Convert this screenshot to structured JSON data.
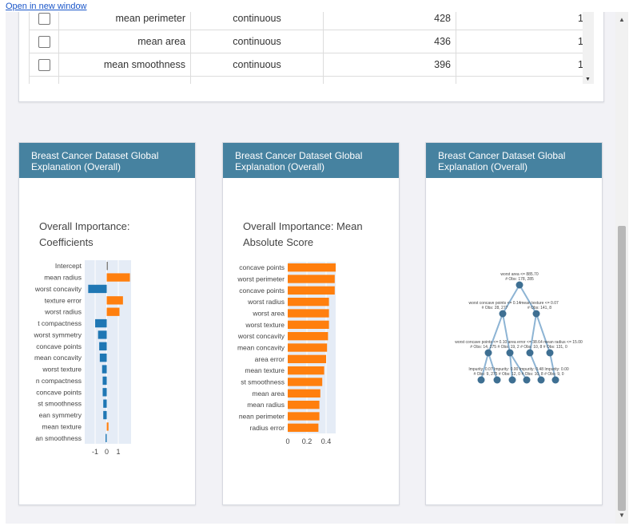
{
  "link": {
    "label": "Open in new window"
  },
  "table": {
    "rows": [
      {
        "feature": "mean perimeter",
        "type": "continuous",
        "count": "428",
        "value": "1"
      },
      {
        "feature": "mean area",
        "type": "continuous",
        "count": "436",
        "value": "1"
      },
      {
        "feature": "mean smoothness",
        "type": "continuous",
        "count": "396",
        "value": "1"
      }
    ]
  },
  "cards": [
    {
      "header": "Breast Cancer Dataset Global Explanation (Overall)",
      "title": "Overall Importance: Coefficients"
    },
    {
      "header": "Breast Cancer Dataset Global Explanation (Overall)",
      "title": "Overall Importance: Mean Absolute Score"
    },
    {
      "header": "Breast Cancer Dataset Global Explanation (Overall)",
      "title": ""
    }
  ],
  "chart_data": [
    {
      "type": "bar",
      "orientation": "horizontal",
      "categories": [
        "Intercept",
        "mean radius",
        "worst concavity",
        "texture error",
        "worst radius",
        "t compactness",
        "worst symmetry",
        "concave points",
        "mean concavity",
        "worst texture",
        "n compactness",
        "concave points",
        "st smoothness",
        "ean symmetry",
        "mean texture",
        "an smoothness"
      ],
      "values": [
        0.1,
        2.0,
        -1.6,
        1.4,
        1.1,
        -1.0,
        -0.75,
        -0.65,
        -0.6,
        -0.4,
        -0.35,
        -0.35,
        -0.3,
        -0.3,
        0.15,
        -0.1
      ],
      "colors": [
        "#7f7f7f",
        "#ff7f0e",
        "#1f77b4",
        "#ff7f0e",
        "#ff7f0e",
        "#1f77b4",
        "#1f77b4",
        "#1f77b4",
        "#1f77b4",
        "#1f77b4",
        "#1f77b4",
        "#1f77b4",
        "#1f77b4",
        "#1f77b4",
        "#ff7f0e",
        "#1f77b4"
      ],
      "xlim": [
        -1.9,
        2.1
      ],
      "xticks": [
        "-1",
        "0",
        "1"
      ],
      "xtick_values": [
        -1,
        0,
        1
      ],
      "grid": true
    },
    {
      "type": "bar",
      "orientation": "horizontal",
      "categories": [
        "concave points",
        "worst perimeter",
        "concave points",
        "worst radius",
        "worst area",
        "worst texture",
        "worst concavity",
        "mean concavity",
        "area error",
        "mean texture",
        "st smoothness",
        "mean area",
        "mean radius",
        "nean perimeter",
        "radius error"
      ],
      "values": [
        0.5,
        0.49,
        0.49,
        0.43,
        0.43,
        0.43,
        0.42,
        0.41,
        0.4,
        0.38,
        0.36,
        0.34,
        0.33,
        0.33,
        0.32
      ],
      "color": "#ff7f0e",
      "xlim": [
        0,
        0.5
      ],
      "xticks": [
        "0",
        "0.2",
        "0.4"
      ],
      "xtick_values": [
        0,
        0.2,
        0.4
      ],
      "grid": true
    }
  ],
  "tree": {
    "root": {
      "label1": "worst area <= 885.70",
      "label2": "# Obs: 178, 285"
    },
    "level1": [
      {
        "label1": "worst concave points <= 0.14",
        "label2": "# Obs: 28, 277"
      },
      {
        "label1": "mean texture <= 0.07",
        "label2": "# Obs: 141, 8"
      }
    ],
    "level2_label1": "worst concave points <= 0.10  area error <= 38.64  mean radius <= 15.00",
    "level2_label2": "# Obs: 14, 275  # Obs: 19, 2  # Obs: 10, 8  # Obs: 131, 0",
    "level3_label1": "Impurity: 0.07  Impurity: 0.00  Impurity: 0.48  Impurity: 0.00",
    "level3_label2": "# Obs: 9, 275  # Obs: 12, 0  # Obs: 10, 8  # Obs: 9, 0",
    "edge_color": "#8db4d4",
    "node_color": "#3e6f92"
  }
}
